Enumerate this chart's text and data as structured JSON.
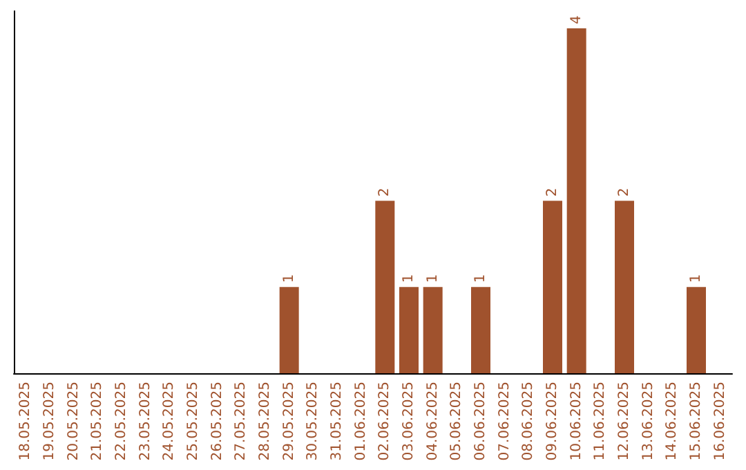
{
  "chart_data": {
    "type": "bar",
    "categories": [
      "18.05.2025",
      "19.05.2025",
      "20.05.2025",
      "21.05.2025",
      "22.05.2025",
      "23.05.2025",
      "24.05.2025",
      "25.05.2025",
      "26.05.2025",
      "27.05.2025",
      "28.05.2025",
      "29.05.2025",
      "30.05.2025",
      "31.05.2025",
      "01.06.2025",
      "02.06.2025",
      "03.06.2025",
      "04.06.2025",
      "05.06.2025",
      "06.06.2025",
      "07.06.2025",
      "08.06.2025",
      "09.06.2025",
      "10.06.2025",
      "11.06.2025",
      "12.06.2025",
      "13.06.2025",
      "14.06.2025",
      "15.06.2025",
      "16.06.2025"
    ],
    "values": [
      null,
      null,
      null,
      null,
      null,
      null,
      null,
      null,
      null,
      null,
      null,
      1,
      null,
      null,
      null,
      2,
      1,
      1,
      null,
      1,
      null,
      null,
      2,
      4,
      null,
      2,
      null,
      null,
      1,
      null
    ],
    "color": "#a0522d",
    "data_labels": true,
    "grid": false,
    "tick_labels": "x"
  }
}
